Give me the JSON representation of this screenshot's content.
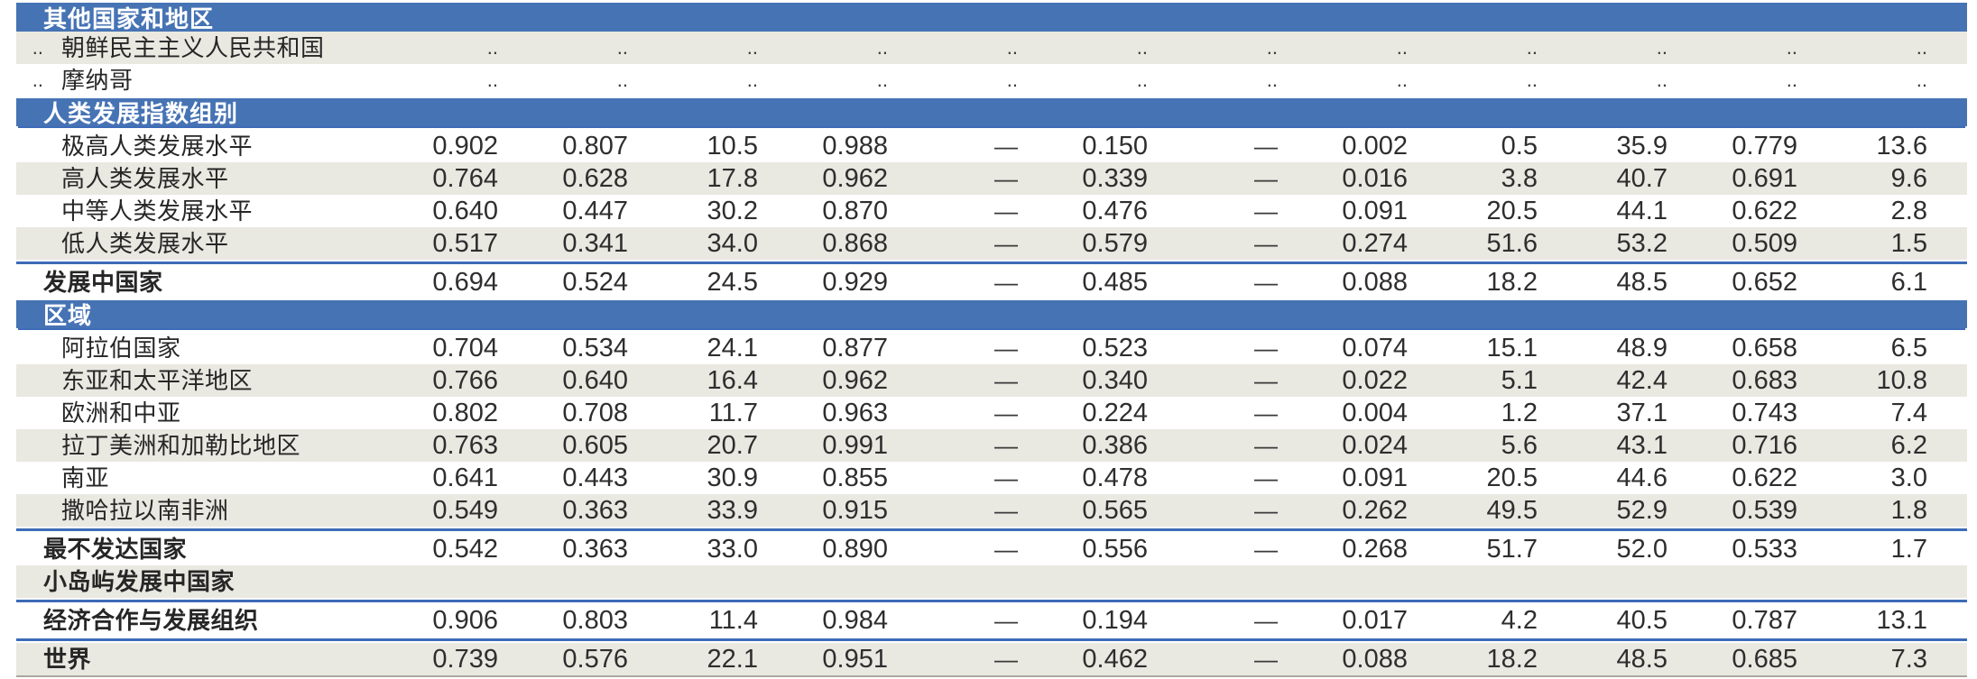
{
  "meta": {
    "description": "Statistical report table: aggregate Human Development Index indicators by country group and region (Chinese)",
    "accent_blue": "#4673b4",
    "divider_blue": "#3d6bb7",
    "stripe_gray": "#e9e8e1",
    "no_data_marker": "..",
    "not_applicable_marker": "—"
  },
  "table": {
    "rows": [
      {
        "kind": "section",
        "label": "其他国家和地区",
        "underline": false
      },
      {
        "kind": "data",
        "shade": "gray",
        "indent": true,
        "rank": "..",
        "label": "朝鲜民主主义人民共和国",
        "values": [
          "..",
          "..",
          "..",
          "..",
          "..",
          "..",
          "..",
          "..",
          "..",
          "..",
          "..",
          ".."
        ]
      },
      {
        "kind": "data",
        "shade": "white",
        "indent": true,
        "rank": "..",
        "label": "摩纳哥",
        "values": [
          "..",
          "..",
          "..",
          "..",
          "..",
          "..",
          "..",
          "..",
          "..",
          "..",
          "..",
          ".."
        ]
      },
      {
        "kind": "section",
        "label": "人类发展指数组别",
        "underline": true
      },
      {
        "kind": "data",
        "shade": "white",
        "indent": true,
        "label": "极高人类发展水平",
        "values": [
          "0.902",
          "0.807",
          "10.5",
          "0.988",
          "—",
          "0.150",
          "—",
          "0.002",
          "0.5",
          "35.9",
          "0.779",
          "13.6"
        ]
      },
      {
        "kind": "data",
        "shade": "gray",
        "indent": true,
        "label": "高人类发展水平",
        "values": [
          "0.764",
          "0.628",
          "17.8",
          "0.962",
          "—",
          "0.339",
          "—",
          "0.016",
          "3.8",
          "40.7",
          "0.691",
          "9.6"
        ]
      },
      {
        "kind": "data",
        "shade": "white",
        "indent": true,
        "label": "中等人类发展水平",
        "values": [
          "0.640",
          "0.447",
          "30.2",
          "0.870",
          "—",
          "0.476",
          "—",
          "0.091",
          "20.5",
          "44.1",
          "0.622",
          "2.8"
        ]
      },
      {
        "kind": "data",
        "shade": "gray",
        "indent": true,
        "label": "低人类发展水平",
        "values": [
          "0.517",
          "0.341",
          "34.0",
          "0.868",
          "—",
          "0.579",
          "—",
          "0.274",
          "51.6",
          "53.2",
          "0.509",
          "1.5"
        ]
      },
      {
        "kind": "sep"
      },
      {
        "kind": "data",
        "shade": "white",
        "bold": true,
        "label": "发展中国家",
        "values": [
          "0.694",
          "0.524",
          "24.5",
          "0.929",
          "—",
          "0.485",
          "—",
          "0.088",
          "18.2",
          "48.5",
          "0.652",
          "6.1"
        ]
      },
      {
        "kind": "section",
        "label": "区域",
        "underline": true
      },
      {
        "kind": "data",
        "shade": "white",
        "indent": true,
        "label": "阿拉伯国家",
        "values": [
          "0.704",
          "0.534",
          "24.1",
          "0.877",
          "—",
          "0.523",
          "—",
          "0.074",
          "15.1",
          "48.9",
          "0.658",
          "6.5"
        ]
      },
      {
        "kind": "data",
        "shade": "gray",
        "indent": true,
        "label": "东亚和太平洋地区",
        "values": [
          "0.766",
          "0.640",
          "16.4",
          "0.962",
          "—",
          "0.340",
          "—",
          "0.022",
          "5.1",
          "42.4",
          "0.683",
          "10.8"
        ]
      },
      {
        "kind": "data",
        "shade": "white",
        "indent": true,
        "label": "欧洲和中亚",
        "values": [
          "0.802",
          "0.708",
          "11.7",
          "0.963",
          "—",
          "0.224",
          "—",
          "0.004",
          "1.2",
          "37.1",
          "0.743",
          "7.4"
        ]
      },
      {
        "kind": "data",
        "shade": "gray",
        "indent": true,
        "label": "拉丁美洲和加勒比地区",
        "values": [
          "0.763",
          "0.605",
          "20.7",
          "0.991",
          "—",
          "0.386",
          "—",
          "0.024",
          "5.6",
          "43.1",
          "0.716",
          "6.2"
        ]
      },
      {
        "kind": "data",
        "shade": "white",
        "indent": true,
        "label": "南亚",
        "values": [
          "0.641",
          "0.443",
          "30.9",
          "0.855",
          "—",
          "0.478",
          "—",
          "0.091",
          "20.5",
          "44.6",
          "0.622",
          "3.0"
        ]
      },
      {
        "kind": "data",
        "shade": "gray",
        "indent": true,
        "label": "撒哈拉以南非洲",
        "values": [
          "0.549",
          "0.363",
          "33.9",
          "0.915",
          "—",
          "0.565",
          "—",
          "0.262",
          "49.5",
          "52.9",
          "0.539",
          "1.8"
        ]
      },
      {
        "kind": "sep"
      },
      {
        "kind": "data",
        "shade": "white",
        "bold": true,
        "label": "最不发达国家",
        "values": [
          "0.542",
          "0.363",
          "33.0",
          "0.890",
          "—",
          "0.556",
          "—",
          "0.268",
          "51.7",
          "52.0",
          "0.533",
          "1.7"
        ]
      },
      {
        "kind": "data",
        "shade": "gray",
        "bold": true,
        "label": "小岛屿发展中国家",
        "values": [
          "",
          "",
          "",
          "",
          "",
          "",
          "",
          "",
          "",
          "",
          "",
          ""
        ]
      },
      {
        "kind": "sep"
      },
      {
        "kind": "data",
        "shade": "white",
        "bold": true,
        "label": "经济合作与发展组织",
        "values": [
          "0.906",
          "0.803",
          "11.4",
          "0.984",
          "—",
          "0.194",
          "—",
          "0.017",
          "4.2",
          "40.5",
          "0.787",
          "13.1"
        ]
      },
      {
        "kind": "sep"
      },
      {
        "kind": "data",
        "shade": "gray",
        "bold": true,
        "label": "世界",
        "values": [
          "0.739",
          "0.576",
          "22.1",
          "0.951",
          "—",
          "0.462",
          "—",
          "0.088",
          "18.2",
          "48.5",
          "0.685",
          "7.3"
        ]
      },
      {
        "kind": "rule"
      }
    ]
  }
}
